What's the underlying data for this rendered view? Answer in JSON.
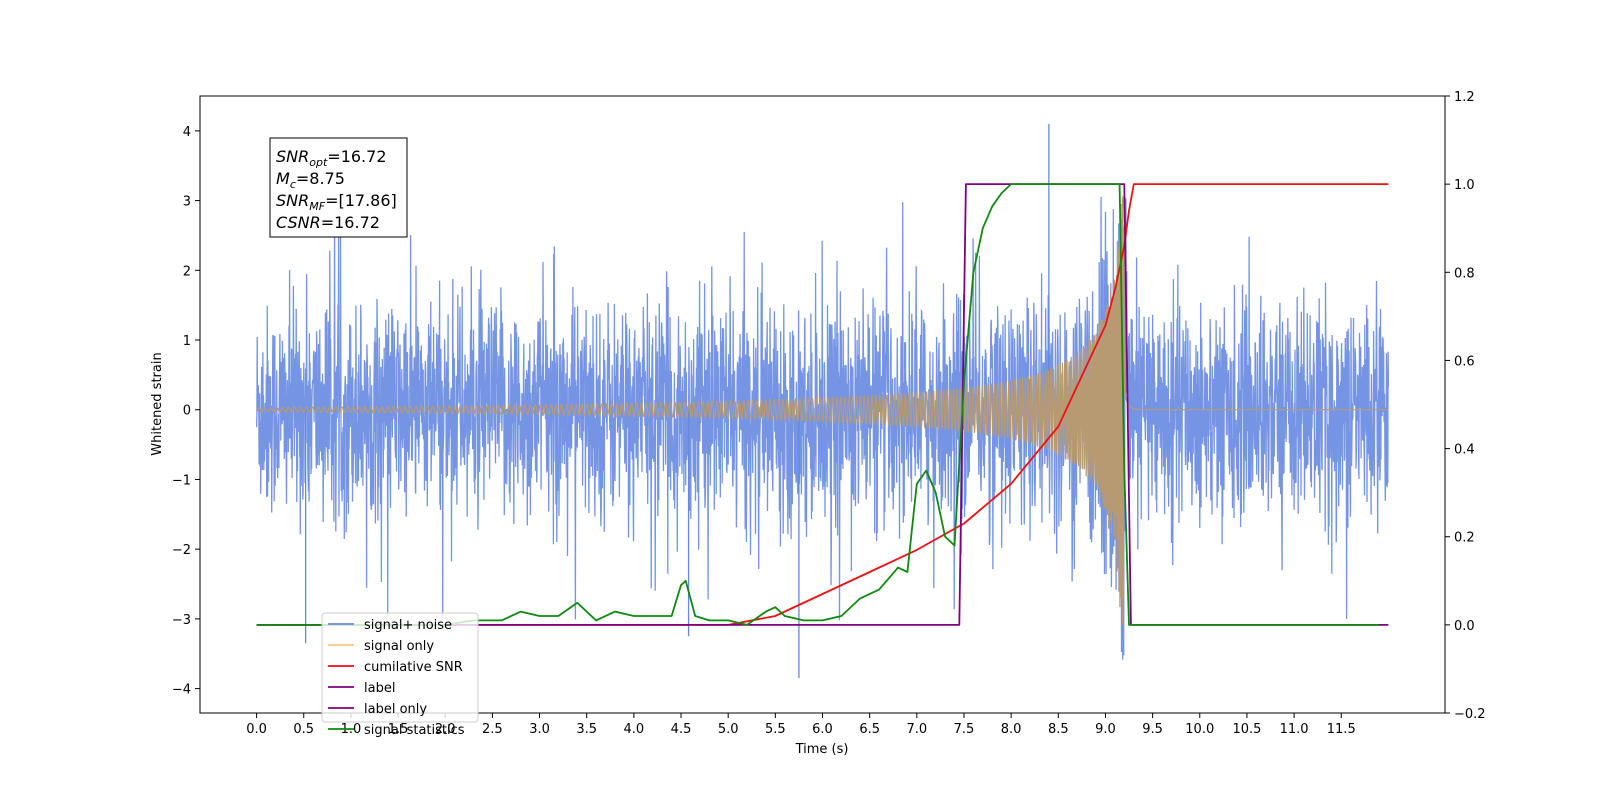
{
  "chart_data": {
    "type": "line",
    "title": "",
    "xlabel": "Time (s)",
    "ylabel": "Whitened strain",
    "xlim": [
      -0.6,
      12.6
    ],
    "ylim": [
      -4.35,
      4.5
    ],
    "y2lim": [
      -0.2,
      1.2
    ],
    "x_ticks": [
      "0.0",
      "0.5",
      "1.0",
      "1.5",
      "2.0",
      "2.5",
      "3.0",
      "3.5",
      "4.0",
      "4.5",
      "5.0",
      "5.5",
      "6.0",
      "6.5",
      "7.0",
      "7.5",
      "8.0",
      "8.5",
      "9.0",
      "9.5",
      "10.0",
      "10.5",
      "11.0",
      "11.5"
    ],
    "y_ticks": [
      "4",
      "3",
      "2",
      "1",
      "0",
      "−1",
      "−2",
      "−3",
      "−4"
    ],
    "y2_ticks": [
      "1.2",
      "1.0",
      "0.8",
      "0.6",
      "0.4",
      "0.2",
      "0.0",
      "−0.2"
    ],
    "grid": false,
    "legend_position": "lower-left",
    "annotation_lines": [
      {
        "base": "SNR",
        "sub": "opt",
        "value": "=16.72"
      },
      {
        "base": "M",
        "sub": "c",
        "value": "=8.75"
      },
      {
        "base": "SNR",
        "sub": "MF",
        "value": "=[17.86]"
      },
      {
        "base": "CSNR",
        "sub": "",
        "value": "=16.72"
      }
    ],
    "series": [
      {
        "name": "signal+ noise",
        "color": "#6688e0",
        "axis": "left",
        "kind": "noise_plus_signal",
        "t_range": [
          0,
          12
        ],
        "amplitude_sigma": 0.75,
        "peaks": [
          [
            0.52,
            -3.35
          ],
          [
            5.75,
            -3.85
          ],
          [
            8.4,
            4.1
          ],
          [
            4.58,
            -3.25
          ]
        ]
      },
      {
        "name": "signal only",
        "color": "#f5b060",
        "axis": "left",
        "kind": "chirp",
        "t_range": [
          0,
          12
        ],
        "merger_time": 9.2,
        "peak_amplitude": 3.1,
        "ringdown_end": 9.4
      },
      {
        "name": "cumilative SNR",
        "color": "#ee1111",
        "axis": "right",
        "x": [
          0.0,
          4.0,
          5.0,
          5.5,
          6.0,
          6.5,
          7.0,
          7.5,
          8.0,
          8.5,
          9.0,
          9.1,
          9.2,
          9.25,
          9.3,
          12.0
        ],
        "y": [
          0.0,
          0.0,
          0.0,
          0.02,
          0.07,
          0.12,
          0.17,
          0.23,
          0.32,
          0.45,
          0.68,
          0.76,
          0.86,
          0.94,
          1.0,
          1.0
        ]
      },
      {
        "name": "label",
        "color": "#800080",
        "axis": "right",
        "x": [
          0.0,
          7.45,
          7.52,
          9.2,
          9.27,
          12.0
        ],
        "y": [
          0.0,
          0.0,
          1.0,
          1.0,
          0.0,
          0.0
        ]
      },
      {
        "name": "label only",
        "color": "#800080",
        "axis": "right",
        "x": [],
        "y": []
      },
      {
        "name": "signal statistics",
        "color": "#118811",
        "axis": "right",
        "x": [
          0.0,
          2.0,
          2.3,
          2.6,
          2.8,
          3.0,
          3.2,
          3.4,
          3.6,
          3.8,
          4.0,
          4.2,
          4.4,
          4.5,
          4.55,
          4.65,
          4.8,
          5.0,
          5.2,
          5.4,
          5.5,
          5.6,
          5.8,
          6.0,
          6.2,
          6.4,
          6.6,
          6.8,
          6.9,
          7.0,
          7.1,
          7.2,
          7.3,
          7.4,
          7.5,
          7.6,
          7.7,
          7.8,
          7.9,
          8.0,
          8.5,
          9.0,
          9.15,
          9.2,
          9.25,
          9.3,
          11.9
        ],
        "y": [
          0.0,
          0.0,
          0.01,
          0.01,
          0.03,
          0.02,
          0.02,
          0.05,
          0.01,
          0.03,
          0.02,
          0.02,
          0.02,
          0.09,
          0.1,
          0.02,
          0.01,
          0.01,
          0.0,
          0.03,
          0.04,
          0.02,
          0.01,
          0.01,
          0.02,
          0.06,
          0.08,
          0.13,
          0.12,
          0.32,
          0.35,
          0.3,
          0.2,
          0.18,
          0.55,
          0.8,
          0.9,
          0.95,
          0.98,
          1.0,
          1.0,
          1.0,
          1.0,
          0.35,
          0.0,
          0.0,
          0.0
        ]
      }
    ],
    "legend_entries": [
      "signal+ noise",
      "signal only",
      "cumilative SNR",
      "label",
      "label only",
      "signal statistics"
    ]
  }
}
